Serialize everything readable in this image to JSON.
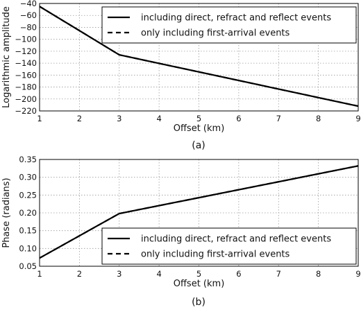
{
  "chart_data": [
    {
      "type": "line",
      "caption": "(a)",
      "xlabel": "Offset (km)",
      "ylabel": "Logarithmic amplitude",
      "xlim": [
        1,
        9
      ],
      "ylim": [
        -220,
        -40
      ],
      "xticks": [
        "1",
        "2",
        "3",
        "4",
        "5",
        "6",
        "7",
        "8",
        "9"
      ],
      "yticks": [
        "−40",
        "−60",
        "−80",
        "−100",
        "−120",
        "−140",
        "−160",
        "−180",
        "−200",
        "−220"
      ],
      "grid": true,
      "legend_position": "top-right",
      "series": [
        {
          "name": "including direct, refract and reflect events",
          "style": "solid",
          "x": [
            1,
            3,
            9
          ],
          "y": [
            -45,
            -126,
            -212
          ]
        },
        {
          "name": "only including first-arrival events",
          "style": "dashed",
          "x": [
            1,
            3,
            9
          ],
          "y": [
            -45,
            -126,
            -212
          ]
        }
      ]
    },
    {
      "type": "line",
      "caption": "(b)",
      "xlabel": "Offset (km)",
      "ylabel": "Phase (radians)",
      "xlim": [
        1,
        9
      ],
      "ylim": [
        0.05,
        0.35
      ],
      "xticks": [
        "1",
        "2",
        "3",
        "4",
        "5",
        "6",
        "7",
        "8",
        "9"
      ],
      "yticks": [
        "0.35",
        "0.30",
        "0.25",
        "0.20",
        "0.15",
        "0.10",
        "0.05"
      ],
      "grid": true,
      "legend_position": "bottom-right",
      "series": [
        {
          "name": "including direct, refract and reflect events",
          "style": "solid",
          "x": [
            1,
            3,
            9
          ],
          "y": [
            0.073,
            0.198,
            0.332
          ]
        },
        {
          "name": "only including first-arrival events",
          "style": "dashed",
          "x": [
            1,
            3,
            9
          ],
          "y": [
            0.073,
            0.198,
            0.332
          ]
        }
      ]
    }
  ]
}
